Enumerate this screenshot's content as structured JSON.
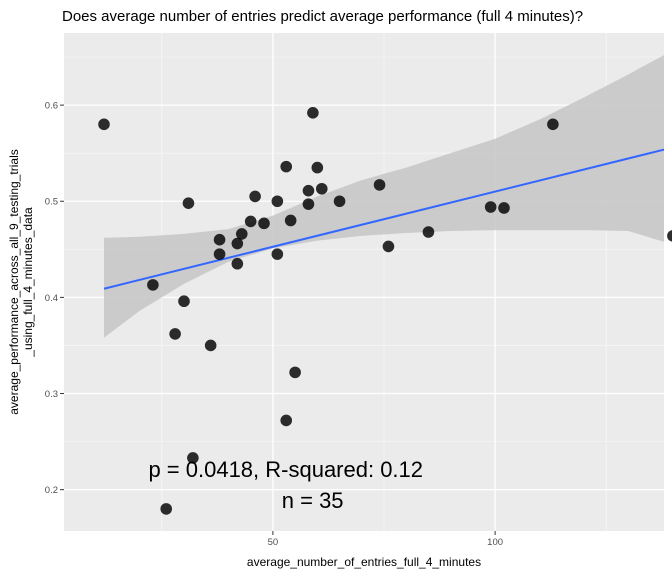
{
  "chart_data": {
    "type": "scatter",
    "title": "Does average number of entries predict average performance (full 4 minutes)?",
    "xlabel": "average_number_of_entries_full_4_minutes",
    "ylabel_lines": [
      "average_performance_across_all_9_testing_trials",
      "_using_full_4_minutes_data"
    ],
    "xlim": [
      3,
      138
    ],
    "ylim": [
      0.157,
      0.675
    ],
    "x_ticks": [
      50,
      100
    ],
    "x_tick_labels": [
      "50",
      "100"
    ],
    "y_ticks": [
      0.2,
      0.3,
      0.4,
      0.5,
      0.6
    ],
    "y_tick_labels": [
      "0.2",
      "0.3",
      "0.4",
      "0.5",
      "0.6"
    ],
    "grid": true,
    "points": [
      {
        "x": 12,
        "y": 0.58
      },
      {
        "x": 23,
        "y": 0.413
      },
      {
        "x": 26,
        "y": 0.18
      },
      {
        "x": 28,
        "y": 0.362
      },
      {
        "x": 30,
        "y": 0.396
      },
      {
        "x": 31,
        "y": 0.498
      },
      {
        "x": 32,
        "y": 0.233
      },
      {
        "x": 36,
        "y": 0.35
      },
      {
        "x": 38,
        "y": 0.46
      },
      {
        "x": 38,
        "y": 0.445
      },
      {
        "x": 42,
        "y": 0.435
      },
      {
        "x": 42,
        "y": 0.456
      },
      {
        "x": 43,
        "y": 0.466
      },
      {
        "x": 45,
        "y": 0.479
      },
      {
        "x": 46,
        "y": 0.505
      },
      {
        "x": 48,
        "y": 0.477
      },
      {
        "x": 51,
        "y": 0.5
      },
      {
        "x": 51,
        "y": 0.445
      },
      {
        "x": 53,
        "y": 0.536
      },
      {
        "x": 53,
        "y": 0.272
      },
      {
        "x": 54,
        "y": 0.48
      },
      {
        "x": 55,
        "y": 0.322
      },
      {
        "x": 58,
        "y": 0.511
      },
      {
        "x": 58,
        "y": 0.497
      },
      {
        "x": 59,
        "y": 0.592
      },
      {
        "x": 60,
        "y": 0.535
      },
      {
        "x": 61,
        "y": 0.513
      },
      {
        "x": 65,
        "y": 0.5
      },
      {
        "x": 74,
        "y": 0.517
      },
      {
        "x": 76,
        "y": 0.453
      },
      {
        "x": 85,
        "y": 0.468
      },
      {
        "x": 99,
        "y": 0.494
      },
      {
        "x": 102,
        "y": 0.493
      },
      {
        "x": 113,
        "y": 0.58
      },
      {
        "x": 140,
        "y": 0.464
      }
    ],
    "fit_line": {
      "x": [
        12,
        140
      ],
      "y": [
        0.409,
        0.556
      ]
    },
    "confidence_band": {
      "x": [
        12,
        20,
        30,
        40,
        50,
        60,
        70,
        80,
        90,
        100,
        110,
        120,
        130,
        140
      ],
      "lower": [
        0.358,
        0.386,
        0.414,
        0.437,
        0.451,
        0.459,
        0.464,
        0.467,
        0.469,
        0.47,
        0.47,
        0.47,
        0.469,
        0.455
      ],
      "upper": [
        0.462,
        0.463,
        0.466,
        0.471,
        0.485,
        0.505,
        0.522,
        0.535,
        0.55,
        0.565,
        0.585,
        0.608,
        0.632,
        0.657
      ]
    },
    "annotations": [
      {
        "text": "p = 0.0418, R-squared:  0.12",
        "x": 22,
        "y": 0.213
      },
      {
        "text": "n = 35",
        "x": 52,
        "y": 0.181
      }
    ],
    "colors": {
      "panel_background": "#ebebeb",
      "grid_major": "#ffffff",
      "grid_minor": "#f5f5f5",
      "band_fill": "#c6c6c6",
      "fit_line": "#3366ff",
      "point": "#000000"
    }
  }
}
